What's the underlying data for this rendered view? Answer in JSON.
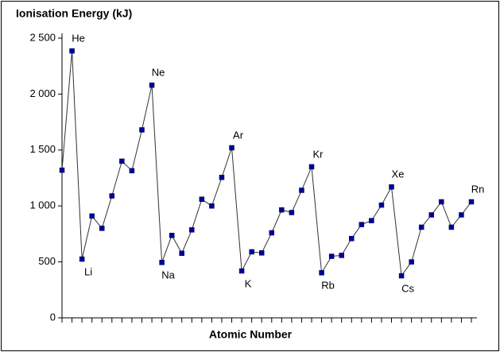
{
  "chart_data": {
    "type": "line",
    "title": "Ionisation Energy (kJ)",
    "x_label": "Atomic Number",
    "categories": [
      null,
      "He",
      "Li",
      null,
      null,
      null,
      null,
      null,
      null,
      "Ne",
      "Na",
      null,
      null,
      null,
      null,
      null,
      null,
      "Ar",
      "K",
      null,
      null,
      null,
      null,
      null,
      null,
      "Kr",
      "Rb",
      null,
      null,
      null,
      null,
      null,
      null,
      "Xe",
      "Cs",
      null,
      null,
      null,
      null,
      null,
      null,
      "Rn"
    ],
    "series": [
      {
        "color": "#000099",
        "values": [
          1320,
          2386,
          525,
          910,
          800,
          1090,
          1400,
          1315,
          1680,
          2080,
          495,
          737,
          577,
          786,
          1060,
          1000,
          1255,
          1520,
          419,
          590,
          580,
          760,
          965,
          941,
          1140,
          1350,
          403,
          550,
          558,
          709,
          834,
          869,
          1008,
          1170,
          376,
          500,
          810,
          920,
          1037,
          810,
          920,
          1037
        ]
      }
    ],
    "ylim": [
      0,
      2500
    ],
    "yticks": [
      0,
      500,
      {
        "value": 1000,
        "label": "1 000"
      },
      {
        "value": 1500,
        "label": "1 500"
      },
      {
        "value": 2000,
        "label": "2 000"
      },
      {
        "value": 2500,
        "label": "2 500"
      }
    ]
  }
}
